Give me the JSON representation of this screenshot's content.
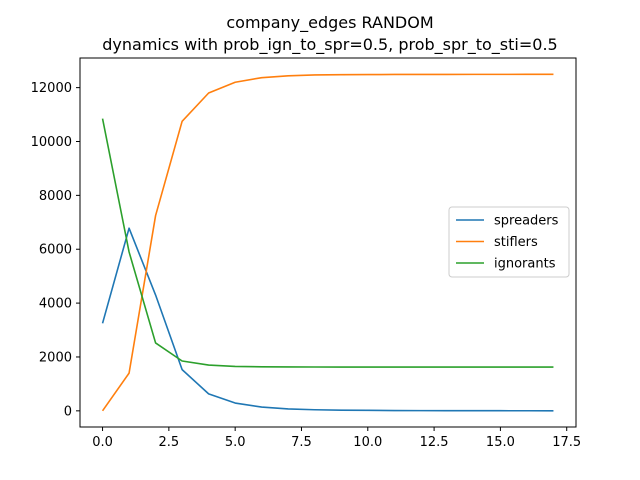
{
  "chart_data": {
    "type": "line",
    "title": "company_edges RANDOM",
    "subtitle": "dynamics with prob_ign_to_spr=0.5, prob_spr_to_sti=0.5",
    "xlabel": "",
    "ylabel": "",
    "xlim": [
      -0.85,
      17.85
    ],
    "ylim": [
      -600,
      13100
    ],
    "xticks": [
      0,
      2.5,
      5,
      7.5,
      10,
      12.5,
      15,
      17.5
    ],
    "xtick_labels": [
      "0.0",
      "2.5",
      "5.0",
      "7.5",
      "10.0",
      "12.5",
      "15.0",
      "17.5"
    ],
    "yticks": [
      0,
      2000,
      4000,
      6000,
      8000,
      10000,
      12000
    ],
    "ytick_labels": [
      "0",
      "2000",
      "4000",
      "6000",
      "8000",
      "10000",
      "12000"
    ],
    "grid": false,
    "legend_position": "center-right",
    "x": [
      0,
      1,
      2,
      3,
      4,
      5,
      6,
      7,
      8,
      9,
      10,
      11,
      12,
      13,
      14,
      15,
      16,
      17
    ],
    "series": [
      {
        "name": "spreaders",
        "color": "#1f77b4",
        "values": [
          3250,
          6780,
          4300,
          1530,
          630,
          290,
          140,
          70,
          40,
          25,
          18,
          12,
          8,
          6,
          5,
          4,
          3,
          2
        ]
      },
      {
        "name": "stiflers",
        "color": "#ff7f0e",
        "values": [
          0,
          1400,
          7250,
          10750,
          11800,
          12200,
          12370,
          12440,
          12470,
          12480,
          12485,
          12488,
          12490,
          12491,
          12492,
          12492,
          12493,
          12493
        ]
      },
      {
        "name": "ignorants",
        "color": "#2ca02c",
        "values": [
          10850,
          5900,
          2520,
          1850,
          1700,
          1650,
          1635,
          1630,
          1628,
          1627,
          1627,
          1627,
          1627,
          1627,
          1627,
          1627,
          1627,
          1627
        ]
      }
    ]
  }
}
